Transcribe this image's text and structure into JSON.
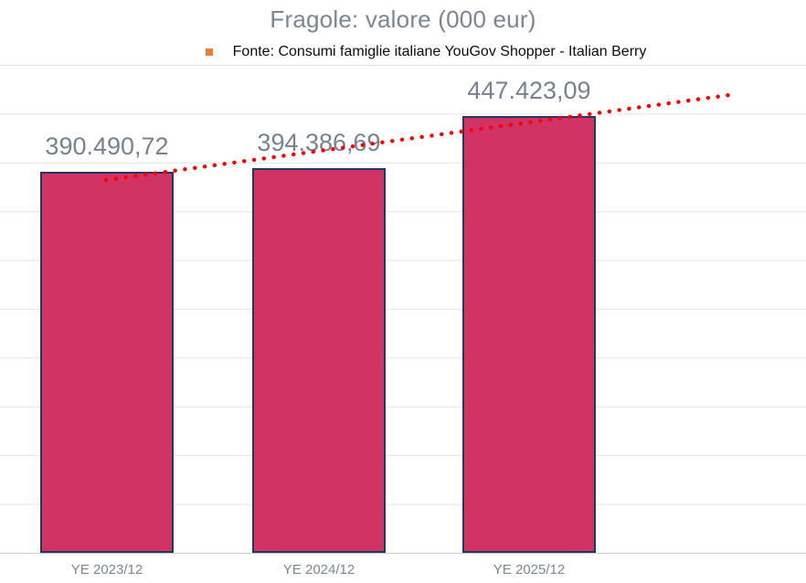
{
  "title": "Fragole: valore (000 eur)",
  "legend": {
    "label": "Fonte: Consumi famiglie italiane YouGov Shopper - Italian Berry",
    "marker_color": "#ED7D31"
  },
  "chart_data": {
    "type": "bar",
    "title": "Fragole: valore (000 eur)",
    "categories": [
      "YE 2023/12",
      "YE 2024/12",
      "YE 2025/12"
    ],
    "values": [
      390490.72,
      394386.69,
      447423.09
    ],
    "data_labels": [
      "390.490,72",
      "394.386,69",
      "447.423,09"
    ],
    "xlabel": "",
    "ylabel": "",
    "ylim": [
      0,
      500000
    ],
    "gridline_step": 50000,
    "grid": true,
    "y_axis_labels_visible": false,
    "legend_position": "top",
    "bar_fill": "#D23365",
    "bar_border": "#1F3864",
    "gridline_color": "#E0E4E6",
    "label_color": "#76828F",
    "trendline": {
      "type": "linear",
      "style": "dotted",
      "color": "#FF0000",
      "start_value": 382000,
      "end_value": 469500
    }
  }
}
